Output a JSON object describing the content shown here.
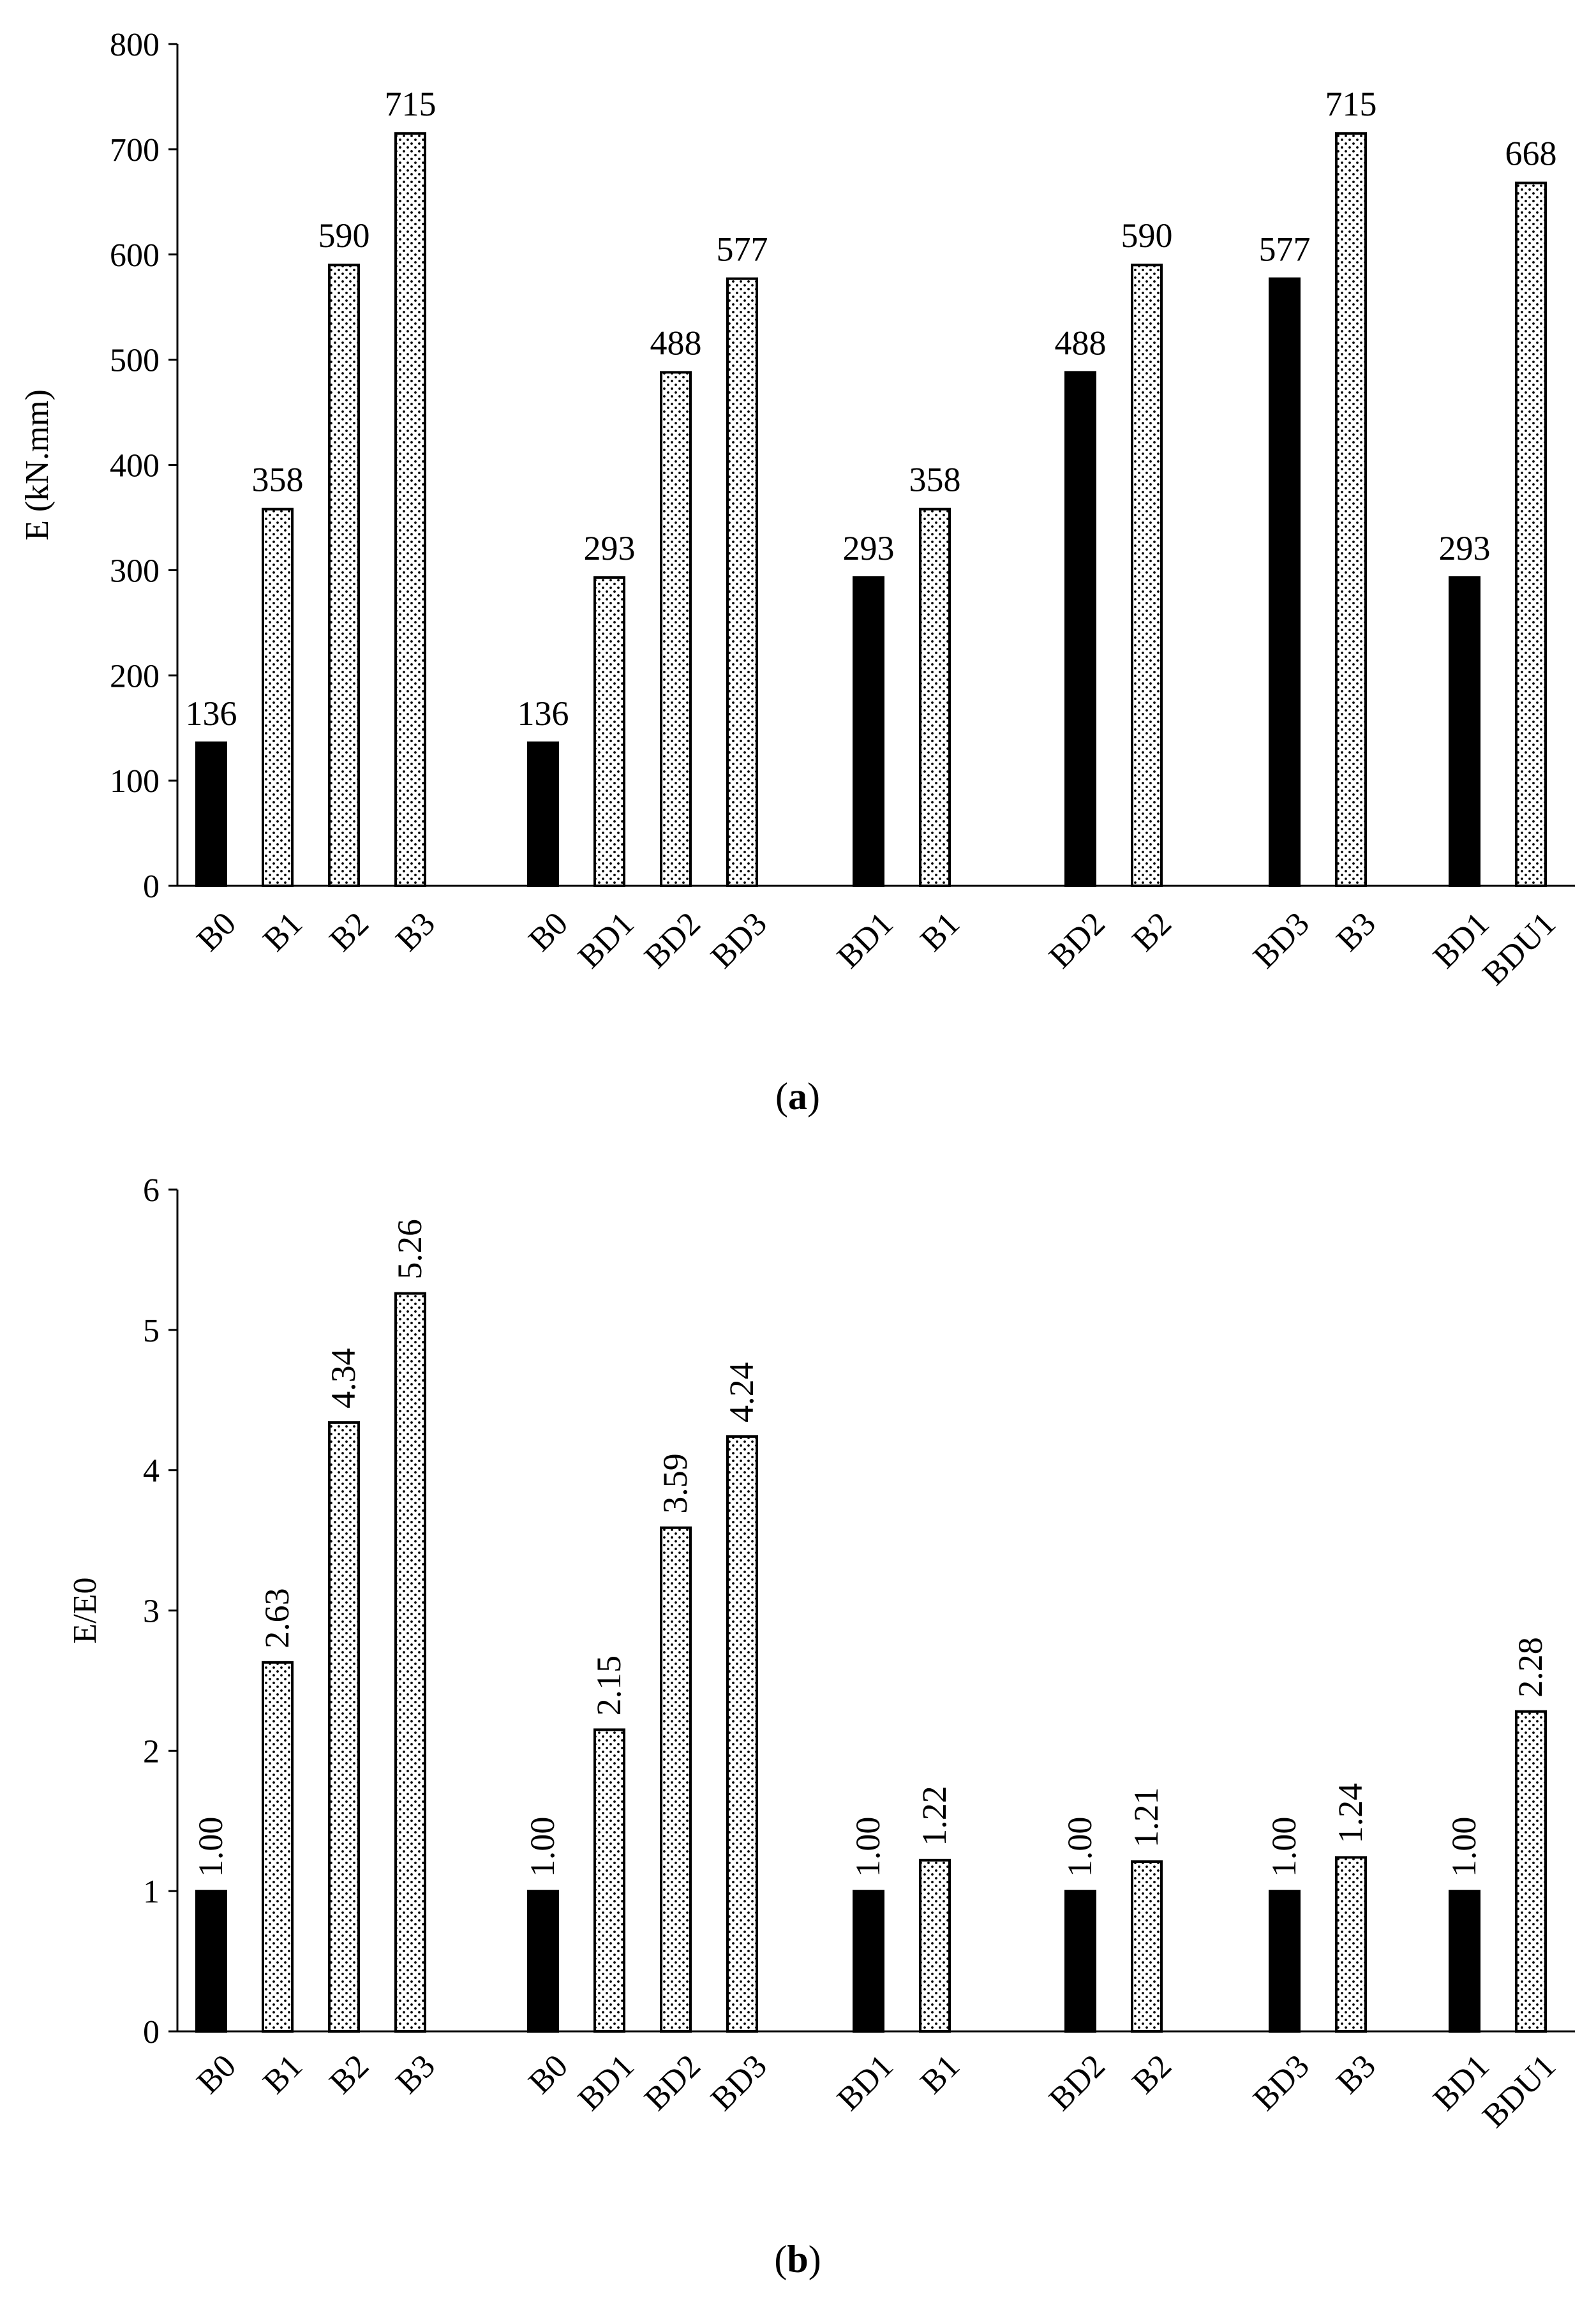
{
  "colors": {
    "solid": "#000000",
    "dotted_bg": "#ffffff",
    "dot": "#000000"
  },
  "chart_data": [
    {
      "type": "bar",
      "panel": "a",
      "caption": {
        "open": "(",
        "letter": "a",
        "close": ")"
      },
      "ylabel": "E (kN.mm)",
      "ylim": [
        0,
        800
      ],
      "yticks": [
        0,
        100,
        200,
        300,
        400,
        500,
        600,
        700,
        800
      ],
      "label_decimals": 0,
      "label_orientation": "horizontal",
      "groups": [
        {
          "bars": [
            {
              "label": "B0",
              "value": 136,
              "style": "solid"
            },
            {
              "label": "B1",
              "value": 358,
              "style": "dotted"
            },
            {
              "label": "B2",
              "value": 590,
              "style": "dotted"
            },
            {
              "label": "B3",
              "value": 715,
              "style": "dotted"
            }
          ]
        },
        {
          "bars": [
            {
              "label": "B0",
              "value": 136,
              "style": "solid"
            },
            {
              "label": "BD1",
              "value": 293,
              "style": "dotted"
            },
            {
              "label": "BD2",
              "value": 488,
              "style": "dotted"
            },
            {
              "label": "BD3",
              "value": 577,
              "style": "dotted"
            }
          ]
        },
        {
          "bars": [
            {
              "label": "BD1",
              "value": 293,
              "style": "solid"
            },
            {
              "label": "B1",
              "value": 358,
              "style": "dotted"
            }
          ]
        },
        {
          "bars": [
            {
              "label": "BD2",
              "value": 488,
              "style": "solid"
            },
            {
              "label": "B2",
              "value": 590,
              "style": "dotted"
            }
          ]
        },
        {
          "bars": [
            {
              "label": "BD3",
              "value": 577,
              "style": "solid"
            },
            {
              "label": "B3",
              "value": 715,
              "style": "dotted"
            }
          ]
        },
        {
          "bars": [
            {
              "label": "BD1",
              "value": 293,
              "style": "solid"
            },
            {
              "label": "BDU1",
              "value": 668,
              "style": "dotted"
            }
          ]
        }
      ]
    },
    {
      "type": "bar",
      "panel": "b",
      "caption": {
        "open": "(",
        "letter": "b",
        "close": ")"
      },
      "ylabel": "E/E0",
      "ylim": [
        0,
        6
      ],
      "yticks": [
        0,
        1,
        2,
        3,
        4,
        5,
        6
      ],
      "label_decimals": 2,
      "label_orientation": "vertical",
      "groups": [
        {
          "bars": [
            {
              "label": "B0",
              "value": 1.0,
              "style": "solid"
            },
            {
              "label": "B1",
              "value": 2.63,
              "style": "dotted"
            },
            {
              "label": "B2",
              "value": 4.34,
              "style": "dotted"
            },
            {
              "label": "B3",
              "value": 5.26,
              "style": "dotted"
            }
          ]
        },
        {
          "bars": [
            {
              "label": "B0",
              "value": 1.0,
              "style": "solid"
            },
            {
              "label": "BD1",
              "value": 2.15,
              "style": "dotted"
            },
            {
              "label": "BD2",
              "value": 3.59,
              "style": "dotted"
            },
            {
              "label": "BD3",
              "value": 4.24,
              "style": "dotted"
            }
          ]
        },
        {
          "bars": [
            {
              "label": "BD1",
              "value": 1.0,
              "style": "solid"
            },
            {
              "label": "B1",
              "value": 1.22,
              "style": "dotted"
            }
          ]
        },
        {
          "bars": [
            {
              "label": "BD2",
              "value": 1.0,
              "style": "solid"
            },
            {
              "label": "B2",
              "value": 1.21,
              "style": "dotted"
            }
          ]
        },
        {
          "bars": [
            {
              "label": "BD3",
              "value": 1.0,
              "style": "solid"
            },
            {
              "label": "B3",
              "value": 1.24,
              "style": "dotted"
            }
          ]
        },
        {
          "bars": [
            {
              "label": "BD1",
              "value": 1.0,
              "style": "solid"
            },
            {
              "label": "BDU1",
              "value": 2.28,
              "style": "dotted"
            }
          ]
        }
      ]
    }
  ]
}
